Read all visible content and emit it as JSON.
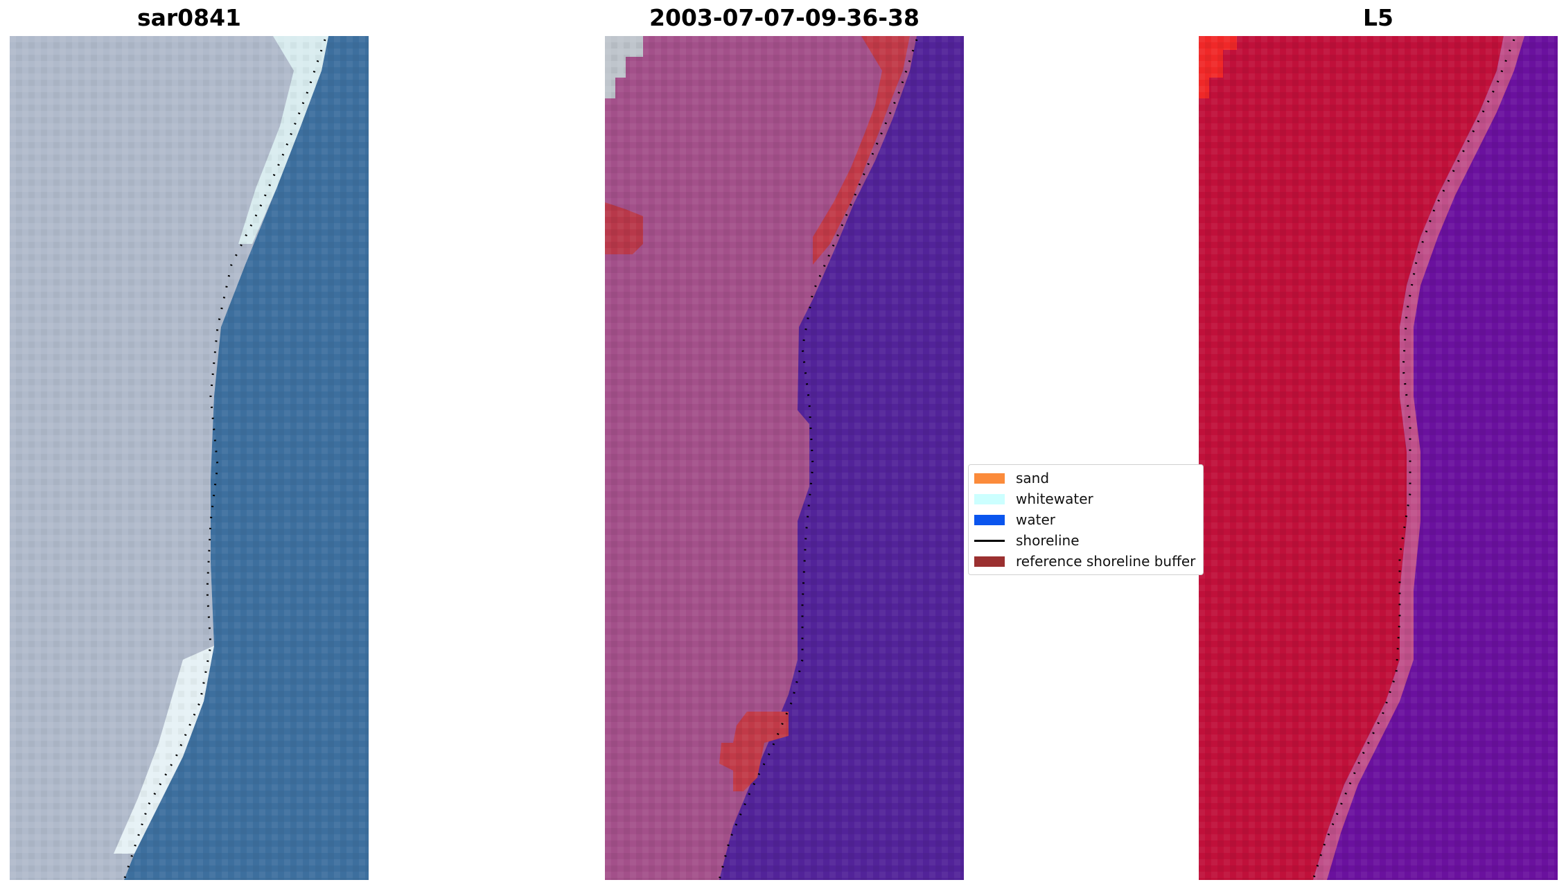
{
  "panels": {
    "left": {
      "title": "sar0841"
    },
    "middle": {
      "title": "2003-07-07-09-36-38"
    },
    "right": {
      "title": "L5"
    }
  },
  "legend": {
    "items": [
      {
        "label": "sand",
        "color": "#fb8b3b",
        "kind": "patch"
      },
      {
        "label": "whitewater",
        "color": "#ccffff",
        "kind": "patch"
      },
      {
        "label": "water",
        "color": "#0a55ee",
        "kind": "patch"
      },
      {
        "label": "shoreline",
        "color": "#000000",
        "kind": "line"
      },
      {
        "label": "reference shoreline buffer",
        "color": "#9b3030",
        "kind": "patch"
      }
    ]
  },
  "colors": {
    "rgb_land": "#b2bccc",
    "rgb_sea": "#3f6f9f",
    "false_color_land": "#a25089",
    "false_color_sea": "#522399",
    "index_land": "#c01038",
    "index_sea": "#6a0e9c",
    "buffer": "#c03848"
  }
}
